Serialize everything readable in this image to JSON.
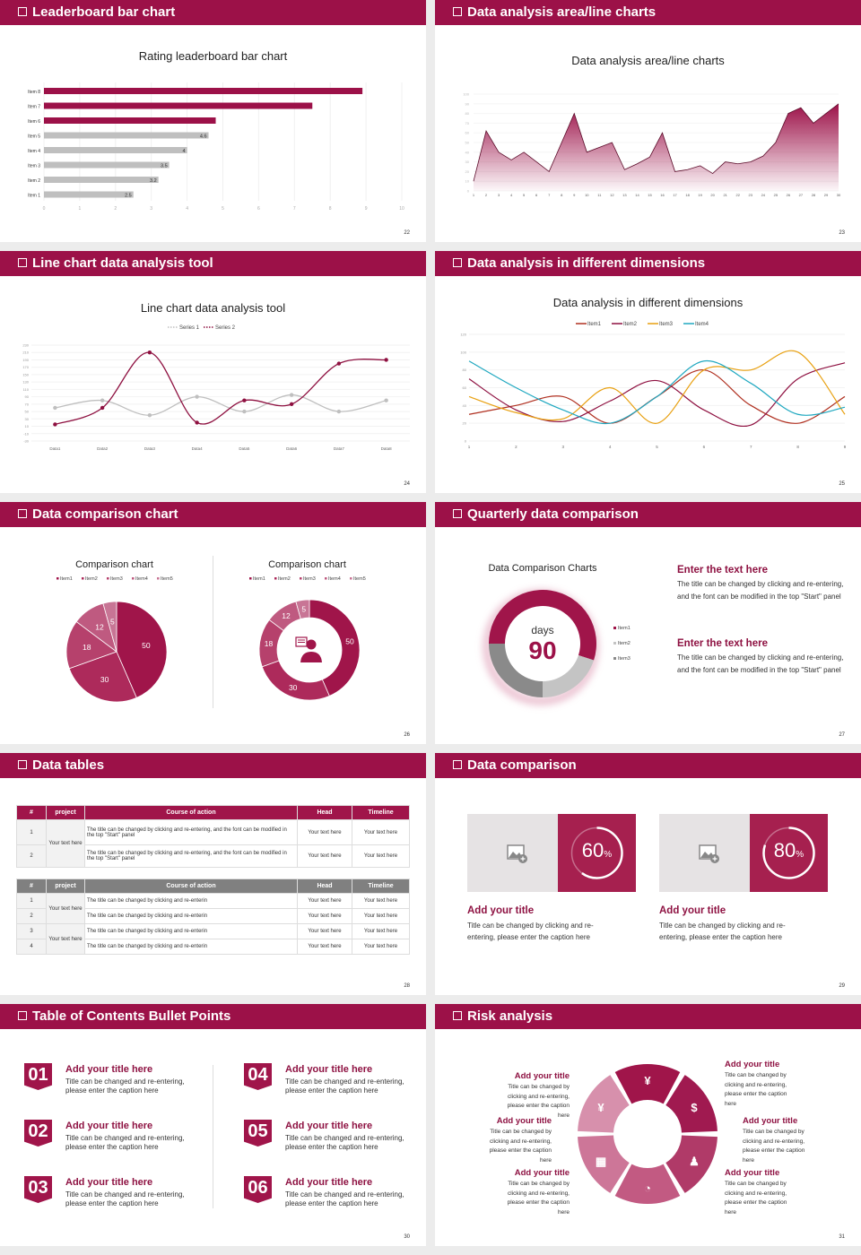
{
  "slides": [
    {
      "header": "Leaderboard bar chart",
      "page": "22"
    },
    {
      "header": "Data analysis area/line charts",
      "page": "23"
    },
    {
      "header": "Line chart data analysis tool",
      "page": "24"
    },
    {
      "header": "Data analysis in different dimensions",
      "page": "25"
    },
    {
      "header": "Data comparison chart",
      "page": "26"
    },
    {
      "header": "Quarterly data comparison",
      "page": "27"
    },
    {
      "header": "Data tables",
      "page": "28"
    },
    {
      "header": "Data comparison",
      "page": "29"
    },
    {
      "header": "Table of Contents Bullet Points",
      "page": "30"
    },
    {
      "header": "Risk analysis",
      "page": "31"
    }
  ],
  "colors": {
    "accent": "#9c1148",
    "gray": "#bfbfbf",
    "darkgray": "#7f7f7f"
  },
  "chart_data": [
    {
      "type": "bar",
      "orientation": "horizontal",
      "title": "Rating leaderboard bar chart",
      "categories": [
        "Item 1",
        "Item 2",
        "Item 3",
        "Item 4",
        "Item 5",
        "Item 6",
        "Item 7",
        "Item 8"
      ],
      "values": [
        2.5,
        3.2,
        3.5,
        4,
        4.6,
        4.8,
        7.5,
        8.9
      ],
      "data_labels": [
        "2.5",
        "3.2",
        "3.5",
        "4",
        "4.6",
        "",
        "",
        ""
      ],
      "highlight_colors": [
        "#bfbfbf",
        "#bfbfbf",
        "#bfbfbf",
        "#bfbfbf",
        "#bfbfbf",
        "#9c1148",
        "#9c1148",
        "#9c1148"
      ],
      "xlim": [
        0,
        10
      ],
      "xticks": [
        "0",
        "1",
        "2",
        "3",
        "4",
        "5",
        "6",
        "7",
        "8",
        "9",
        "10"
      ],
      "grid": true
    },
    {
      "type": "area",
      "title": "Data analysis area/line charts",
      "x": [
        "1",
        "2",
        "3",
        "4",
        "5",
        "6",
        "7",
        "8",
        "9",
        "10",
        "11",
        "12",
        "13",
        "14",
        "15",
        "16",
        "17",
        "18",
        "19",
        "20",
        "21",
        "22",
        "23",
        "24",
        "25",
        "26",
        "27",
        "28",
        "29",
        "30"
      ],
      "values": [
        10,
        62,
        40,
        32,
        40,
        30,
        20,
        50,
        80,
        40,
        45,
        50,
        22,
        28,
        35,
        60,
        20,
        22,
        26,
        18,
        30,
        28,
        30,
        36,
        50,
        80,
        86,
        70,
        80,
        90
      ],
      "ylim": [
        0,
        100
      ],
      "yticks": [
        "0",
        "10",
        "20",
        "30",
        "40",
        "50",
        "60",
        "70",
        "80",
        "90",
        "100"
      ],
      "grid": true
    },
    {
      "type": "line",
      "title": "Line chart data analysis tool",
      "categories": [
        "Data1",
        "Data2",
        "Data3",
        "Data4",
        "Data5",
        "Data6",
        "Data7",
        "Data8"
      ],
      "series": [
        {
          "name": "Series 1",
          "color": "#bfbfbf",
          "values": [
            60,
            80,
            40,
            90,
            50,
            95,
            50,
            80
          ]
        },
        {
          "name": "Series 2",
          "color": "#8e1040",
          "values": [
            15,
            60,
            210,
            20,
            80,
            70,
            180,
            190
          ]
        }
      ],
      "ylim": [
        -30,
        230
      ],
      "yticks": [
        "-30",
        "-10",
        "10",
        "30",
        "50",
        "70",
        "90",
        "110",
        "130",
        "150",
        "170",
        "190",
        "210",
        "230"
      ],
      "grid": true,
      "legend": "top"
    },
    {
      "type": "line",
      "title": "Data analysis in different dimensions",
      "categories": [
        "1",
        "2",
        "3",
        "4",
        "5",
        "6",
        "7",
        "8",
        "9"
      ],
      "series": [
        {
          "name": "Item1",
          "color": "#b03020",
          "values": [
            30,
            40,
            50,
            20,
            50,
            80,
            40,
            20,
            50
          ]
        },
        {
          "name": "Item2",
          "color": "#8e1040",
          "values": [
            70,
            35,
            22,
            45,
            68,
            35,
            18,
            70,
            88
          ]
        },
        {
          "name": "Item3",
          "color": "#e8a010",
          "values": [
            50,
            32,
            25,
            60,
            20,
            80,
            80,
            100,
            30
          ]
        },
        {
          "name": "Item4",
          "color": "#20a8c0",
          "values": [
            90,
            60,
            35,
            20,
            50,
            90,
            65,
            30,
            38
          ]
        }
      ],
      "ylim": [
        0,
        120
      ],
      "yticks": [
        "0",
        "20",
        "40",
        "60",
        "80",
        "100",
        "120"
      ],
      "grid": true,
      "legend": "top"
    },
    {
      "type": "pie",
      "title": "Comparison chart",
      "categories": [
        "Item1",
        "Item2",
        "Item3",
        "Item4",
        "Item5"
      ],
      "values": [
        50,
        30,
        18,
        12,
        5
      ],
      "colors": [
        "#a0154a",
        "#ad2a5b",
        "#b6416c",
        "#bf5a80",
        "#c87595"
      ],
      "legend": "top"
    },
    {
      "type": "donut",
      "title": "Comparison chart",
      "categories": [
        "Item1",
        "Item2",
        "Item3",
        "Item4",
        "Item5"
      ],
      "values": [
        50,
        30,
        18,
        12,
        5
      ],
      "colors": [
        "#a0154a",
        "#ad2a5b",
        "#b6416c",
        "#bf5a80",
        "#c87595"
      ],
      "legend": "top",
      "center_icon": "customer-service-person-icon"
    },
    {
      "type": "donut",
      "title": "Data Comparison Charts",
      "categories": [
        "Item1",
        "Item2",
        "Item3"
      ],
      "values": [
        55,
        20,
        25
      ],
      "colors": [
        "#a0154a",
        "#c4c4c4",
        "#8a8a8a"
      ],
      "center_label": "days",
      "center_value": "90",
      "legend": "right"
    }
  ],
  "quarterly": {
    "blocks": [
      {
        "title": "Enter the text here",
        "text": "The title can be changed by clicking and re-entering, and the font can be modified in the top \"Start\" panel"
      },
      {
        "title": "Enter the text here",
        "text": "The title can be changed by clicking and re-entering, and the font can be modified in the top \"Start\" panel"
      }
    ]
  },
  "tables": {
    "headers": [
      "#",
      "project",
      "Course of action",
      "Head",
      "Timeline"
    ],
    "t1": {
      "project": "Your text here",
      "rows": [
        {
          "n": "1",
          "action": "The title can be changed by clicking and re-entering, and the font can be modified in the top \"Start\" panel",
          "head": "Your text here",
          "timeline": "Your text here"
        },
        {
          "n": "2",
          "action": "The title can be changed by clicking and re-entering, and the font can be modified in the top \"Start\" panel",
          "head": "Your text here",
          "timeline": "Your text here"
        }
      ]
    },
    "t2": {
      "projects": [
        "Your text here",
        "Your text here"
      ],
      "rows": [
        {
          "n": "1",
          "action": "The title can be changed by clicking and re-enterin",
          "head": "Your text here",
          "timeline": "Your text here"
        },
        {
          "n": "2",
          "action": "The title can be changed by clicking and re-enterin",
          "head": "Your text here",
          "timeline": "Your text here"
        },
        {
          "n": "3",
          "action": "The title can be changed by clicking and re-enterin",
          "head": "Your text here",
          "timeline": "Your text here"
        },
        {
          "n": "4",
          "action": "The title can be changed by clicking and re-enterin",
          "head": "Your text here",
          "timeline": "Your text here"
        }
      ]
    }
  },
  "comparison": {
    "cards": [
      {
        "percent": 60,
        "value": "60",
        "unit": "%",
        "icon": "image-placeholder-icon",
        "title": "Add your title",
        "text": "Title can be changed by clicking and re-entering, please enter the caption here"
      },
      {
        "percent": 80,
        "value": "80",
        "unit": "%",
        "icon": "image-placeholder-icon",
        "title": "Add your title",
        "text": "Title can be changed by clicking and re-entering, please enter the caption here"
      }
    ]
  },
  "toc": {
    "items": [
      {
        "num": "01",
        "title": "Add your title here",
        "text": "Title can be changed and re-entering, please enter the caption here"
      },
      {
        "num": "02",
        "title": "Add your title here",
        "text": "Title can be changed and re-entering, please enter the caption here"
      },
      {
        "num": "03",
        "title": "Add your title here",
        "text": "Title can be changed and re-entering, please enter the caption here"
      },
      {
        "num": "04",
        "title": "Add your title here",
        "text": "Title can be changed and re-entering, please enter the caption here"
      },
      {
        "num": "05",
        "title": "Add your title here",
        "text": "Title can be changed and re-entering, please enter the caption here"
      },
      {
        "num": "06",
        "title": "Add your title here",
        "text": "Title can be changed and re-entering, please enter the caption here"
      }
    ]
  },
  "risk": {
    "items": [
      {
        "title": "Add your title",
        "text": "Title can be changed by clicking and re-entering, please enter the caption here",
        "icon": "money-bag-icon"
      },
      {
        "title": "Add your title",
        "text": "Title can be changed by clicking and re-entering, please enter the caption here",
        "icon": "currency-hand-icon"
      },
      {
        "title": "Add your title",
        "text": "Title can be changed by clicking and re-entering, please enter the caption here",
        "icon": "building-icon"
      },
      {
        "title": "Add your title",
        "text": "Title can be changed by clicking and re-entering, please enter the caption here",
        "icon": "coins-icon"
      },
      {
        "title": "Add your title",
        "text": "Title can be changed by clicking and re-entering, please enter the caption here",
        "icon": "users-icon"
      },
      {
        "title": "Add your title",
        "text": "Title can be changed by clicking and re-entering, please enter the caption here",
        "icon": "pie-chart-icon"
      }
    ]
  }
}
